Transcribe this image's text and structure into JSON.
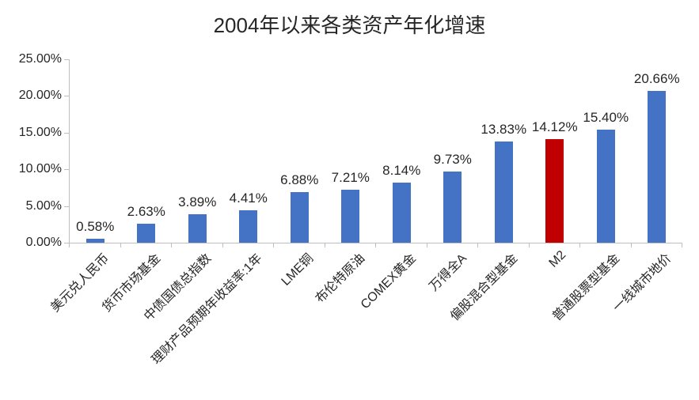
{
  "chart_data": {
    "type": "bar",
    "title": "2004年以来各类资产年化增速",
    "categories": [
      "美元兑人民币",
      "货币市场基金",
      "中债国债总指数",
      "理财产品预期年收益率:1年",
      "LME铜",
      "布伦特原油",
      "COMEX黄金",
      "万得全A",
      "偏股混合型基金",
      "M2",
      "普通股票型基金",
      "一线城市地价"
    ],
    "values": [
      0.58,
      2.63,
      3.89,
      4.41,
      6.88,
      7.21,
      8.14,
      9.73,
      13.83,
      14.12,
      15.4,
      20.66
    ],
    "data_labels": [
      "0.58%",
      "2.63%",
      "3.89%",
      "4.41%",
      "6.88%",
      "7.21%",
      "8.14%",
      "9.73%",
      "13.83%",
      "14.12%",
      "15.40%",
      "20.66%"
    ],
    "highlight_index": 9,
    "y_tick_labels": [
      "0.00%",
      "5.00%",
      "10.00%",
      "15.00%",
      "20.00%",
      "25.00%"
    ],
    "ylim": [
      0,
      25
    ],
    "y_step": 5,
    "xlabel": "",
    "ylabel": "",
    "legend": false,
    "grid": false,
    "x_label_rotation_deg": 45,
    "colors": {
      "bar": "#4472C4",
      "highlight": "#C00000",
      "axis": "#BFBFBF",
      "text": "#262626"
    }
  }
}
